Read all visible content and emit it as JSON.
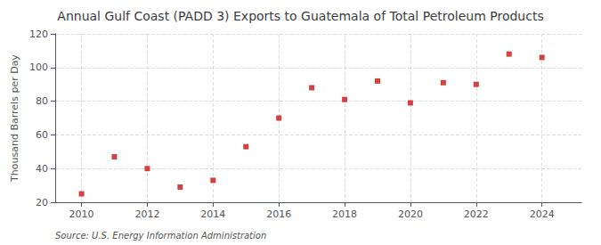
{
  "chart_data": {
    "type": "scatter",
    "title": "Annual Gulf Coast (PADD 3) Exports to Guatemala of Total Petroleum Products",
    "ylabel": "Thousand Barrels per Day",
    "annotation": "Source: U.S. Energy Information Administration",
    "x": [
      2010,
      2011,
      2012,
      2013,
      2014,
      2015,
      2016,
      2017,
      2018,
      2019,
      2020,
      2021,
      2022,
      2023,
      2024
    ],
    "values": [
      25,
      47,
      40,
      29,
      33,
      53,
      70,
      88,
      81,
      92,
      79,
      91,
      90,
      108,
      106
    ],
    "color": "#cc1111",
    "marker": "square",
    "xlim": [
      2009.2,
      2025.2
    ],
    "xticks": [
      2010,
      2012,
      2014,
      2016,
      2018,
      2020,
      2022,
      2024
    ],
    "ylim": [
      20,
      120
    ],
    "yticks": [
      20,
      40,
      60,
      80,
      100,
      120
    ],
    "grid": true
  }
}
